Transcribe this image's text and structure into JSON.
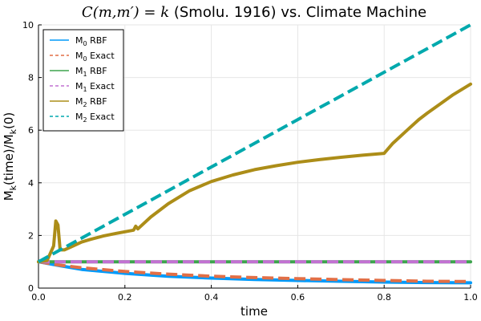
{
  "chart_data": {
    "type": "line",
    "title_math": "C(m,m′) = k",
    "title_rest": " (Smolu. 1916) vs. Climate Machine",
    "xlabel": "time",
    "ylabel": "M_k(time)/M_k(0)",
    "xlim": [
      0,
      1
    ],
    "ylim": [
      0,
      10
    ],
    "xticks": [
      "0.0",
      "0.2",
      "0.4",
      "0.6",
      "0.8",
      "1.0"
    ],
    "yticks": [
      "0",
      "2",
      "4",
      "6",
      "8",
      "10"
    ],
    "grid": true,
    "legend_position": "top-left",
    "series": [
      {
        "name": "M_0 RBF",
        "color": "#009AFA",
        "style": "solid",
        "x": [
          0,
          0.05,
          0.1,
          0.2,
          0.3,
          0.4,
          0.5,
          0.6,
          0.7,
          0.8,
          0.9,
          1.0
        ],
        "y": [
          1.0,
          0.85,
          0.71,
          0.56,
          0.45,
          0.38,
          0.33,
          0.29,
          0.26,
          0.23,
          0.21,
          0.2
        ]
      },
      {
        "name": "M_0 Exact",
        "color": "#E26F46",
        "style": "dashed",
        "x": [
          0,
          0.05,
          0.1,
          0.2,
          0.3,
          0.4,
          0.5,
          0.6,
          0.7,
          0.8,
          0.9,
          1.0
        ],
        "y": [
          1.0,
          0.87,
          0.77,
          0.63,
          0.53,
          0.45,
          0.4,
          0.36,
          0.32,
          0.29,
          0.26,
          0.25
        ]
      },
      {
        "name": "M_1 RBF",
        "color": "#3DA44D",
        "style": "solid",
        "x": [
          0,
          1.0
        ],
        "y": [
          1.0,
          1.0
        ]
      },
      {
        "name": "M_1 Exact",
        "color": "#C271D2",
        "style": "dashed",
        "x": [
          0,
          1.0
        ],
        "y": [
          1.0,
          1.0
        ]
      },
      {
        "name": "M_2 RBF",
        "color": "#AC8D18",
        "style": "solid",
        "x": [
          0,
          0.02,
          0.035,
          0.04,
          0.045,
          0.05,
          0.06,
          0.08,
          0.1,
          0.12,
          0.15,
          0.18,
          0.22,
          0.225,
          0.23,
          0.26,
          0.3,
          0.35,
          0.4,
          0.45,
          0.5,
          0.55,
          0.6,
          0.65,
          0.7,
          0.75,
          0.8,
          0.82,
          0.85,
          0.88,
          0.9,
          0.93,
          0.96,
          1.0
        ],
        "y": [
          1.0,
          1.05,
          1.6,
          2.55,
          2.4,
          1.45,
          1.45,
          1.6,
          1.75,
          1.85,
          1.98,
          2.08,
          2.2,
          2.35,
          2.25,
          2.7,
          3.2,
          3.7,
          4.05,
          4.3,
          4.5,
          4.65,
          4.78,
          4.88,
          4.97,
          5.05,
          5.12,
          5.5,
          5.95,
          6.4,
          6.65,
          7.0,
          7.35,
          7.75
        ]
      },
      {
        "name": "M_2 Exact",
        "color": "#00A9AD",
        "style": "dashed",
        "x": [
          0,
          1.0
        ],
        "y": [
          1.0,
          10.0
        ]
      }
    ]
  },
  "legend": {
    "items": [
      {
        "base": "M",
        "sub": "0",
        "suffix": " RBF"
      },
      {
        "base": "M",
        "sub": "0",
        "suffix": " Exact"
      },
      {
        "base": "M",
        "sub": "1",
        "suffix": " RBF"
      },
      {
        "base": "M",
        "sub": "1",
        "suffix": " Exact"
      },
      {
        "base": "M",
        "sub": "2",
        "suffix": " RBF"
      },
      {
        "base": "M",
        "sub": "2",
        "suffix": " Exact"
      }
    ]
  }
}
